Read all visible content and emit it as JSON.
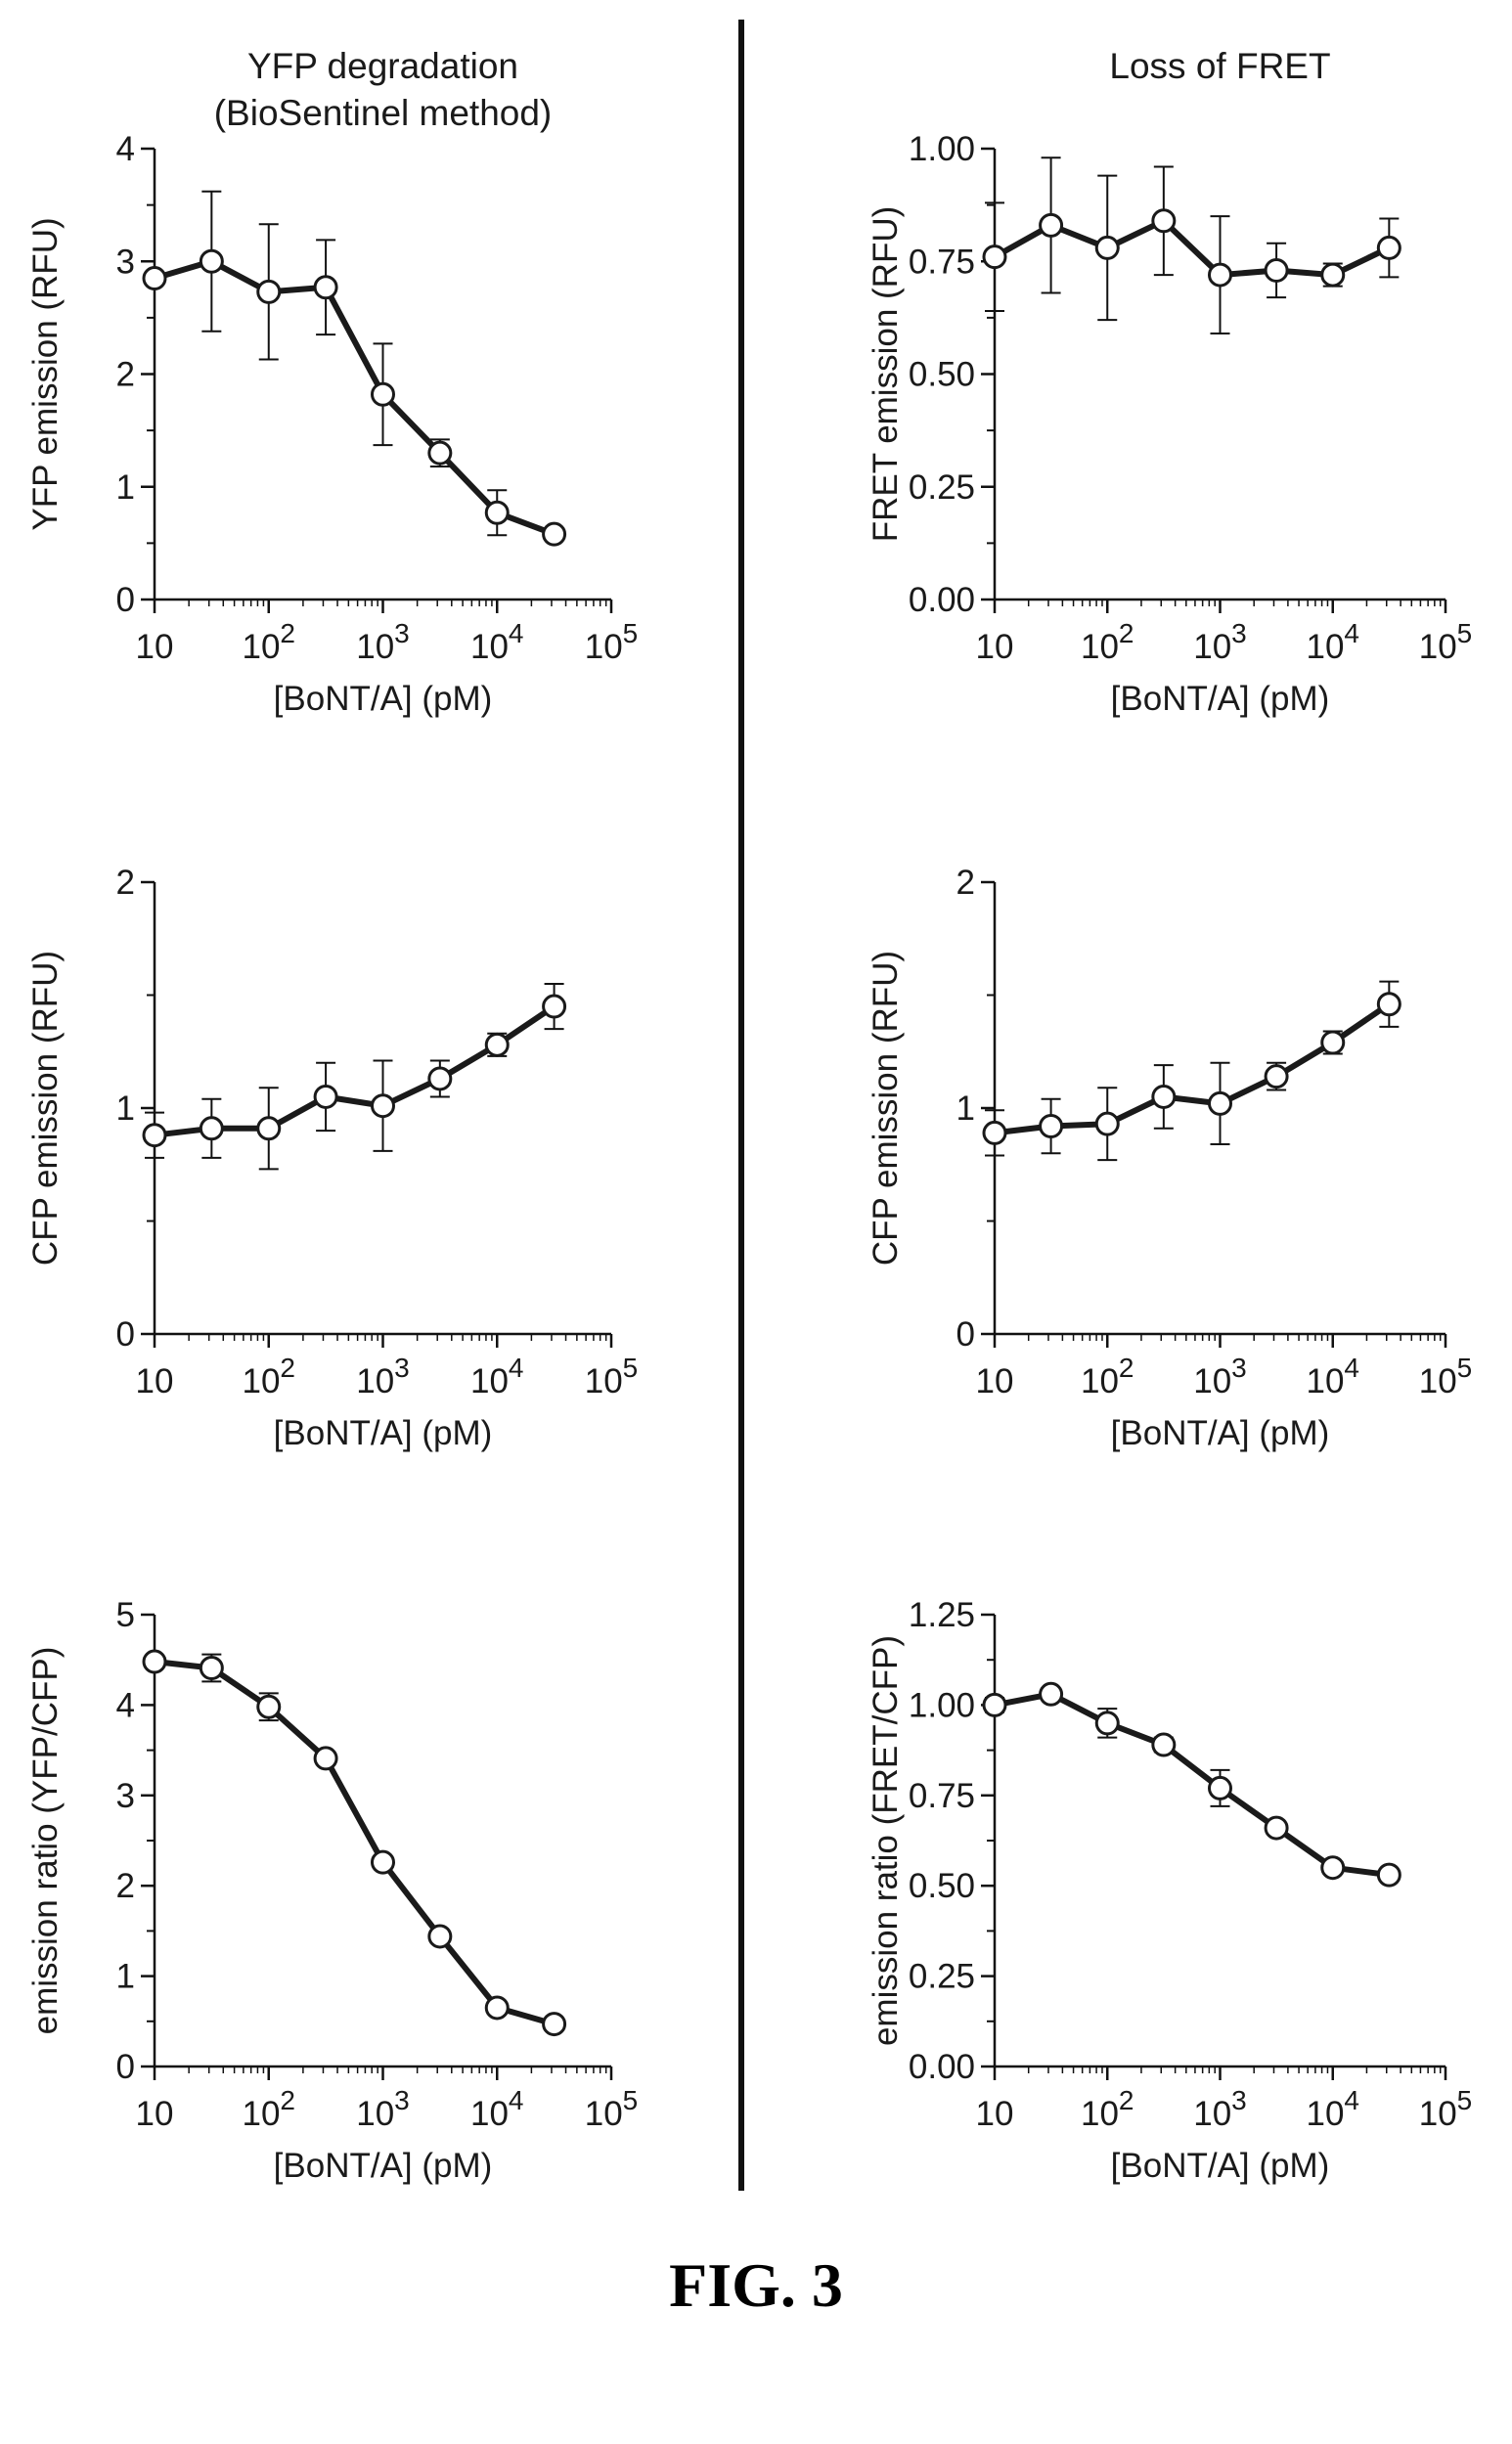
{
  "figure_caption": "FIG. 3",
  "chart_data": [
    {
      "type": "line",
      "title": "YFP degradation",
      "subtitle": "(BioSentinel method)",
      "xlabel": "[BoNT/A] (pM)",
      "ylabel": "YFP emission (RFU)",
      "x_scale": "log",
      "xlim": [
        10,
        100000
      ],
      "ylim": [
        0,
        4
      ],
      "x_ticks": [
        10,
        100,
        1000,
        10000,
        100000
      ],
      "x_tick_labels": [
        {
          "b": "10",
          "e": ""
        },
        {
          "b": "10",
          "e": "2"
        },
        {
          "b": "10",
          "e": "3"
        },
        {
          "b": "10",
          "e": "4"
        },
        {
          "b": "10",
          "e": "5"
        }
      ],
      "y_ticks": [
        0,
        1,
        2,
        3,
        4
      ],
      "y_tick_labels": [
        "0",
        "1",
        "2",
        "3",
        "4"
      ],
      "grid": false,
      "x": [
        10,
        31.6,
        100,
        316,
        1000,
        3160,
        10000,
        31600
      ],
      "y": [
        2.85,
        3.0,
        2.73,
        2.77,
        1.82,
        1.3,
        0.77,
        0.58
      ],
      "yerr": [
        0.05,
        0.62,
        0.6,
        0.42,
        0.45,
        0.12,
        0.2,
        0.02
      ]
    },
    {
      "type": "line",
      "title": "Loss of FRET",
      "xlabel": "[BoNT/A] (pM)",
      "ylabel": "FRET emission (RFU)",
      "x_scale": "log",
      "xlim": [
        10,
        100000
      ],
      "ylim": [
        0,
        1
      ],
      "x_ticks": [
        10,
        100,
        1000,
        10000,
        100000
      ],
      "x_tick_labels": [
        {
          "b": "10",
          "e": ""
        },
        {
          "b": "10",
          "e": "2"
        },
        {
          "b": "10",
          "e": "3"
        },
        {
          "b": "10",
          "e": "4"
        },
        {
          "b": "10",
          "e": "5"
        }
      ],
      "y_ticks": [
        0,
        0.25,
        0.5,
        0.75,
        1.0
      ],
      "y_tick_labels": [
        "0.00",
        "0.25",
        "0.50",
        "0.75",
        "1.00"
      ],
      "grid": false,
      "x": [
        10,
        31.6,
        100,
        316,
        1000,
        3160,
        10000,
        31600
      ],
      "y": [
        0.76,
        0.83,
        0.78,
        0.84,
        0.72,
        0.73,
        0.72,
        0.78
      ],
      "yerr": [
        0.12,
        0.15,
        0.16,
        0.12,
        0.13,
        0.06,
        0.025,
        0.065
      ]
    },
    {
      "type": "line",
      "xlabel": "[BoNT/A] (pM)",
      "ylabel": "CFP emission (RFU)",
      "x_scale": "log",
      "xlim": [
        10,
        100000
      ],
      "ylim": [
        0,
        2
      ],
      "x_ticks": [
        10,
        100,
        1000,
        10000,
        100000
      ],
      "x_tick_labels": [
        {
          "b": "10",
          "e": ""
        },
        {
          "b": "10",
          "e": "2"
        },
        {
          "b": "10",
          "e": "3"
        },
        {
          "b": "10",
          "e": "4"
        },
        {
          "b": "10",
          "e": "5"
        }
      ],
      "y_ticks": [
        0,
        1,
        2
      ],
      "y_tick_labels": [
        "0",
        "1",
        "2"
      ],
      "grid": false,
      "x": [
        10,
        31.6,
        100,
        316,
        1000,
        3160,
        10000,
        31600
      ],
      "y": [
        0.88,
        0.91,
        0.91,
        1.05,
        1.01,
        1.13,
        1.28,
        1.45
      ],
      "yerr": [
        0.1,
        0.13,
        0.18,
        0.15,
        0.2,
        0.08,
        0.05,
        0.1
      ]
    },
    {
      "type": "line",
      "xlabel": "[BoNT/A] (pM)",
      "ylabel": "CFP emission (RFU)",
      "x_scale": "log",
      "xlim": [
        10,
        100000
      ],
      "ylim": [
        0,
        2
      ],
      "x_ticks": [
        10,
        100,
        1000,
        10000,
        100000
      ],
      "x_tick_labels": [
        {
          "b": "10",
          "e": ""
        },
        {
          "b": "10",
          "e": "2"
        },
        {
          "b": "10",
          "e": "3"
        },
        {
          "b": "10",
          "e": "4"
        },
        {
          "b": "10",
          "e": "5"
        }
      ],
      "y_ticks": [
        0,
        1,
        2
      ],
      "y_tick_labels": [
        "0",
        "1",
        "2"
      ],
      "grid": false,
      "x": [
        10,
        31.6,
        100,
        316,
        1000,
        3160,
        10000,
        31600
      ],
      "y": [
        0.89,
        0.92,
        0.93,
        1.05,
        1.02,
        1.14,
        1.29,
        1.46
      ],
      "yerr": [
        0.1,
        0.12,
        0.16,
        0.14,
        0.18,
        0.06,
        0.05,
        0.1
      ]
    },
    {
      "type": "line",
      "xlabel": "[BoNT/A] (pM)",
      "ylabel": "emission ratio (YFP/CFP)",
      "x_scale": "log",
      "xlim": [
        10,
        100000
      ],
      "ylim": [
        0,
        5
      ],
      "x_ticks": [
        10,
        100,
        1000,
        10000,
        100000
      ],
      "x_tick_labels": [
        {
          "b": "10",
          "e": ""
        },
        {
          "b": "10",
          "e": "2"
        },
        {
          "b": "10",
          "e": "3"
        },
        {
          "b": "10",
          "e": "4"
        },
        {
          "b": "10",
          "e": "5"
        }
      ],
      "y_ticks": [
        0,
        1,
        2,
        3,
        4,
        5
      ],
      "y_tick_labels": [
        "0",
        "1",
        "2",
        "3",
        "4",
        "5"
      ],
      "grid": false,
      "x": [
        10,
        31.6,
        100,
        316,
        1000,
        3160,
        10000,
        31600
      ],
      "y": [
        4.48,
        4.41,
        3.98,
        3.41,
        2.26,
        1.44,
        0.65,
        0.47
      ],
      "yerr": [
        0.06,
        0.15,
        0.15,
        0.05,
        0.05,
        0.04,
        0.04,
        0.03
      ]
    },
    {
      "type": "line",
      "xlabel": "[BoNT/A] (pM)",
      "ylabel": "emission ratio (FRET/CFP)",
      "x_scale": "log",
      "xlim": [
        10,
        100000
      ],
      "ylim": [
        0,
        1.25
      ],
      "x_ticks": [
        10,
        100,
        1000,
        10000,
        100000
      ],
      "x_tick_labels": [
        {
          "b": "10",
          "e": ""
        },
        {
          "b": "10",
          "e": "2"
        },
        {
          "b": "10",
          "e": "3"
        },
        {
          "b": "10",
          "e": "4"
        },
        {
          "b": "10",
          "e": "5"
        }
      ],
      "y_ticks": [
        0,
        0.25,
        0.5,
        0.75,
        1.0,
        1.25
      ],
      "y_tick_labels": [
        "0.00",
        "0.25",
        "0.50",
        "0.75",
        "1.00",
        "1.25"
      ],
      "grid": false,
      "x": [
        10,
        31.6,
        100,
        316,
        1000,
        3160,
        10000,
        31600
      ],
      "y": [
        1.0,
        1.03,
        0.95,
        0.89,
        0.77,
        0.66,
        0.55,
        0.53
      ],
      "yerr": [
        0.02,
        0.01,
        0.04,
        0.02,
        0.05,
        0.01,
        0.01,
        0.01
      ]
    }
  ]
}
